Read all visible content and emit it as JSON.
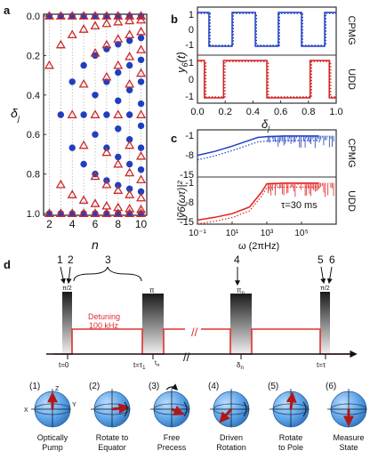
{
  "panel_labels": {
    "a": "a",
    "b": "b",
    "c": "c",
    "d": "d"
  },
  "panel_a": {
    "ylabel_main": "δ",
    "ylabel_sub": "j",
    "xlabel": "n",
    "xticks": [
      "2",
      "4",
      "6",
      "8",
      "10"
    ],
    "yticks": [
      "0.0",
      "0.2",
      "0.4",
      "0.6",
      "0.8",
      "1.0"
    ],
    "colors": {
      "udd": "#cc2a2a",
      "cpmg": "#1f3fbf"
    }
  },
  "panel_b": {
    "ylabel_main": "y",
    "ylabel_sub": "6",
    "ylabel_rest": "(t)",
    "yticks_top": [
      "1",
      "0",
      "-1"
    ],
    "yticks_bottom": [
      "1",
      "0",
      "-1"
    ],
    "xticks": [
      "0.0",
      "0.2",
      "0.4",
      "0.6",
      "0.8",
      "1.0"
    ],
    "xlabel_main": "δ",
    "xlabel_sub": "j",
    "label_cpmg": "CPMG",
    "label_udd": "UDD"
  },
  "panel_c": {
    "ylabel": "|ỹ6(ωτ)|²",
    "yticks_top": [
      "-1",
      "-8",
      "-15"
    ],
    "yticks_bottom": [
      "-1",
      "-8",
      "-15"
    ],
    "xticks": [
      "10⁻¹",
      "10¹",
      "10³",
      "10⁵"
    ],
    "xlabel": "ω (2πHz)",
    "tau_label": "τ=30 ms",
    "label_cpmg": "CPMG",
    "label_udd": "UDD"
  },
  "panel_d": {
    "step_numbers": [
      "1",
      "2",
      "3",
      "4",
      "5",
      "6"
    ],
    "pulse_pi2": "π/2",
    "pulse_pi": "π",
    "pulse_pin": "π",
    "pulse_pin_sub": "n",
    "detuning_line1": "Detuning",
    "detuning_line2": "100 kHz",
    "time_t0": "t=0",
    "time_t1": "t=τ",
    "time_t1_sub": "1",
    "time_tpi": "t",
    "time_tpi_sub": "π",
    "time_delta": "δ",
    "time_delta_sub": "n",
    "time_tau": "t=τ",
    "sphere_steps": [
      "(1)",
      "(2)",
      "(3)",
      "(4)",
      "(5)",
      "(6)"
    ],
    "axis_z": "Z",
    "axis_x": "X",
    "axis_y": "Y",
    "captions": [
      [
        "Optically",
        "Pump"
      ],
      [
        "Rotate to",
        "Equator"
      ],
      [
        "Free",
        "Precess"
      ],
      [
        "Driven",
        "Rotation"
      ],
      [
        "Rotate",
        "to Pole"
      ],
      [
        "Measure",
        "State"
      ]
    ],
    "colors": {
      "pulse_line": "#e03030",
      "sphere": "#4a9ae0",
      "arrow": "#b01818"
    }
  },
  "chart_data": [
    {
      "type": "scatter",
      "title": "",
      "xlabel": "n",
      "ylabel": "δj",
      "xlim": [
        1.5,
        10.5
      ],
      "ylim": [
        1.0,
        0.0
      ],
      "series": [
        {
          "name": "",
          "marker": "circle",
          "x": [
            2,
            2,
            3,
            3,
            3,
            4,
            4,
            4,
            4,
            5,
            5,
            5,
            5,
            5,
            6,
            6,
            6,
            6,
            6,
            6,
            7,
            7,
            7,
            7,
            7,
            7,
            7,
            8,
            8,
            8,
            8,
            8,
            8,
            8,
            8,
            9,
            9,
            9,
            9,
            9,
            9,
            9,
            9,
            9,
            10,
            10,
            10,
            10,
            10,
            10,
            10,
            10,
            10,
            10
          ],
          "y": [
            0,
            1,
            0,
            0.5,
            1,
            0,
            0.333,
            0.667,
            1,
            0,
            0.25,
            0.5,
            0.75,
            1,
            0,
            0.2,
            0.4,
            0.6,
            0.8,
            1,
            0,
            0.167,
            0.333,
            0.5,
            0.667,
            0.833,
            1,
            0,
            0.143,
            0.286,
            0.429,
            0.571,
            0.714,
            0.857,
            1,
            0,
            0.125,
            0.25,
            0.375,
            0.5,
            0.625,
            0.75,
            0.875,
            1,
            0,
            0.111,
            0.222,
            0.333,
            0.444,
            0.556,
            0.667,
            0.778,
            0.889,
            1
          ]
        },
        {
          "name": "",
          "marker": "triangle",
          "x": [
            2,
            2,
            2,
            3,
            3,
            3,
            3,
            4,
            4,
            4,
            4,
            4,
            5,
            5,
            5,
            5,
            5,
            5,
            6,
            6,
            6,
            6,
            6,
            6,
            6,
            7,
            7,
            7,
            7,
            7,
            7,
            7,
            7,
            8,
            8,
            8,
            8,
            8,
            8,
            8,
            8,
            8,
            9,
            9,
            9,
            9,
            9,
            9,
            9,
            9,
            9,
            9,
            10,
            10,
            10,
            10,
            10,
            10,
            10,
            10,
            10,
            10,
            10
          ],
          "y": [
            0,
            0.25,
            1,
            0,
            0.146,
            0.854,
            1,
            0,
            0.095,
            0.5,
            0.905,
            1,
            0,
            0.067,
            0.345,
            0.655,
            0.933,
            1,
            0,
            0.05,
            0.188,
            0.5,
            0.812,
            0.95,
            1,
            0,
            0.038,
            0.146,
            0.309,
            0.691,
            0.854,
            0.962,
            1,
            0,
            0.03,
            0.117,
            0.25,
            0.5,
            0.75,
            0.883,
            0.97,
            1,
            0,
            0.024,
            0.095,
            0.206,
            0.345,
            0.655,
            0.794,
            0.905,
            0.976,
            1,
            0,
            0.02,
            0.079,
            0.171,
            0.29,
            0.5,
            0.71,
            0.829,
            0.921,
            0.98,
            1
          ]
        }
      ]
    },
    {
      "type": "line",
      "title": "",
      "xlabel": "δj",
      "ylabel": "y6(t)",
      "xlim": [
        0,
        1
      ],
      "ylim": [
        -1,
        1
      ],
      "series": [
        {
          "name": "CPMG",
          "switch_times": [
            0.083,
            0.25,
            0.417,
            0.583,
            0.75,
            0.917
          ]
        },
        {
          "name": "UDD",
          "switch_times": [
            0.05,
            0.188,
            0.5,
            0.812,
            0.95
          ]
        }
      ]
    },
    {
      "type": "line",
      "title": "",
      "xlabel": "ω (2πHz)",
      "ylabel": "|ỹ6(ωτ)|²",
      "xscale": "log",
      "xlim": [
        0.1,
        10000000
      ],
      "ylim": [
        -15,
        -1
      ],
      "series": [
        {
          "name": "CPMG",
          "x": [
            0.1,
            1,
            10,
            100,
            300,
            1000,
            10000,
            100000,
            1000000
          ],
          "y": [
            -8.2,
            -6.8,
            -4.9,
            -2.8,
            -1.8,
            -1.5,
            -1.3,
            -1.3,
            -1.3
          ]
        },
        {
          "name": "UDD",
          "x": [
            0.1,
            1,
            10,
            100,
            500,
            1000,
            10000,
            100000,
            1000000
          ],
          "y": [
            -14.5,
            -13.5,
            -12.2,
            -9.8,
            -4.5,
            -1.5,
            -1.3,
            -1.3,
            -1.3
          ]
        }
      ]
    }
  ]
}
